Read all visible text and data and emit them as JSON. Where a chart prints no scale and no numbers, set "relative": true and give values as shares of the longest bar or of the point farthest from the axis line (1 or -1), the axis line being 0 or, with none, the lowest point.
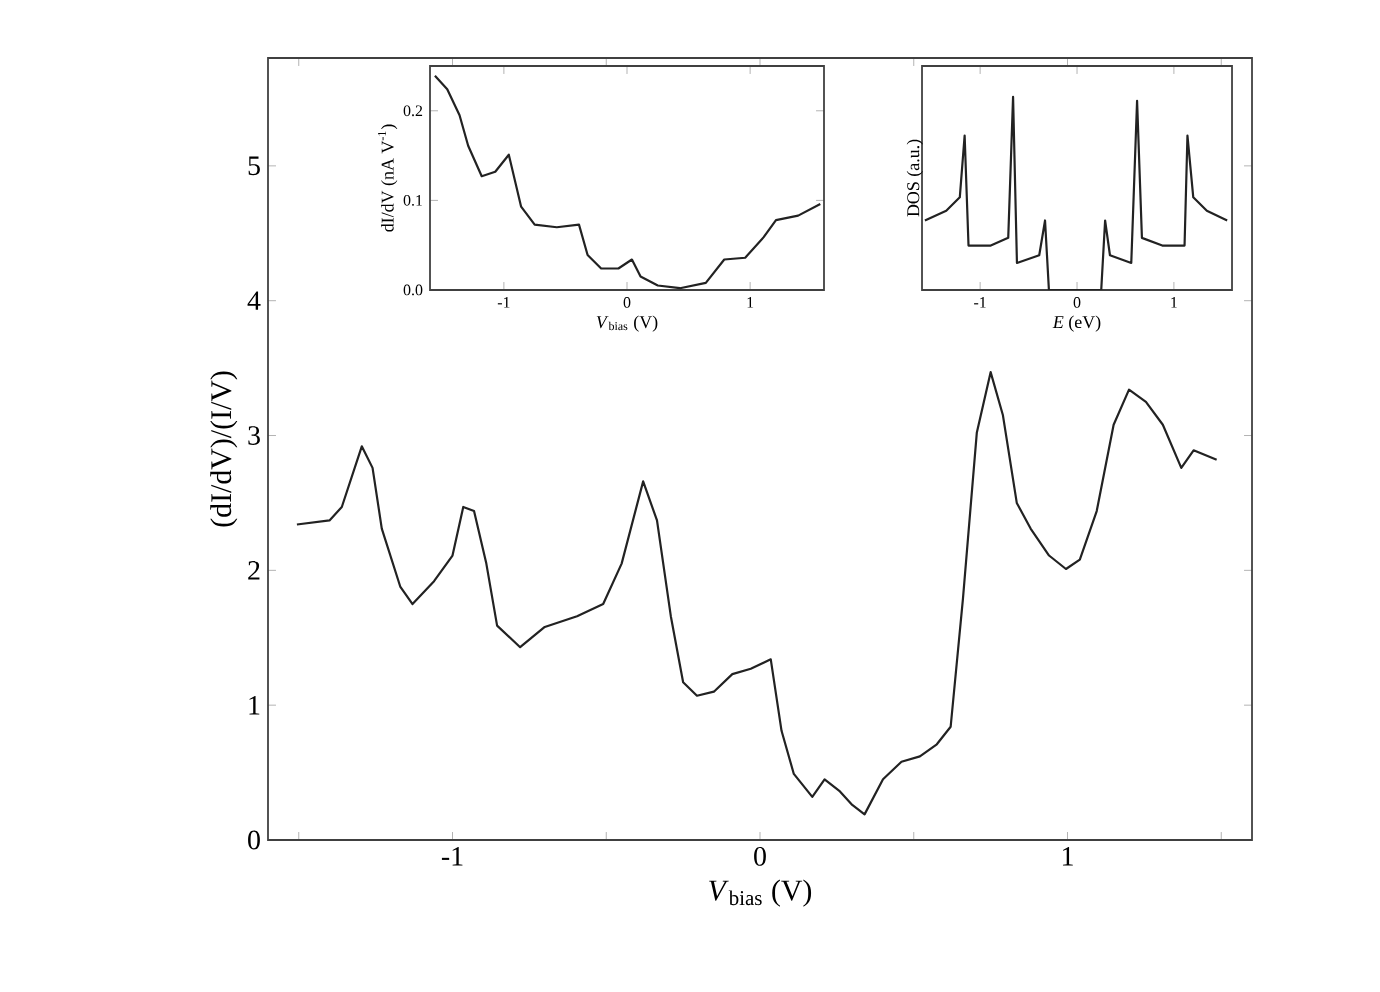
{
  "chart_data": [
    {
      "type": "line",
      "xlabel": "*V*$_{bias}$ (V)",
      "ylabel": "(dI/dV)/(I/V)",
      "xlim": [
        -1.6,
        1.6
      ],
      "ylim": [
        0,
        5.8
      ],
      "xticks": [
        {
          "value": -1.5,
          "label": null
        },
        -1,
        {
          "value": -0.5,
          "label": null
        },
        0,
        {
          "value": 0.5,
          "label": null
        },
        1,
        {
          "value": 1.5,
          "label": null
        }
      ],
      "yticks": [
        0,
        1,
        2,
        3,
        4,
        5
      ],
      "x": [
        -1.506,
        -1.4,
        -1.36,
        -1.295,
        -1.26,
        -1.23,
        -1.17,
        -1.13,
        -1.06,
        -1.0,
        -0.965,
        -0.93,
        -0.89,
        -0.855,
        -0.78,
        -0.7,
        -0.595,
        -0.51,
        -0.45,
        -0.38,
        -0.335,
        -0.29,
        -0.25,
        -0.205,
        -0.15,
        -0.09,
        -0.03,
        0.035,
        0.07,
        0.11,
        0.17,
        0.21,
        0.26,
        0.3,
        0.34,
        0.4,
        0.46,
        0.52,
        0.575,
        0.62,
        0.66,
        0.705,
        0.75,
        0.79,
        0.835,
        0.88,
        0.94,
        0.995,
        1.04,
        1.095,
        1.15,
        1.2,
        1.255,
        1.31,
        1.37,
        1.41,
        1.485
      ],
      "series": [
        {
          "color": "#222222",
          "values": [
            2.34,
            2.37,
            2.47,
            2.92,
            2.76,
            2.31,
            1.88,
            1.75,
            1.92,
            2.11,
            2.47,
            2.44,
            2.05,
            1.59,
            1.43,
            1.58,
            1.66,
            1.75,
            2.05,
            2.66,
            2.37,
            1.66,
            1.17,
            1.07,
            1.1,
            1.23,
            1.27,
            1.34,
            0.81,
            0.49,
            0.32,
            0.45,
            0.36,
            0.26,
            0.19,
            0.45,
            0.58,
            0.62,
            0.71,
            0.84,
            1.79,
            3.02,
            3.47,
            3.15,
            2.5,
            2.31,
            2.11,
            2.01,
            2.08,
            2.44,
            3.08,
            3.34,
            3.25,
            3.08,
            2.76,
            2.89,
            2.82
          ]
        }
      ]
    },
    {
      "type": "line",
      "xlabel": "*V*$_{bias}$ (V)",
      "ylabel": "dI/dV (nA V$^{-1}$)",
      "xlim": [
        -1.6,
        1.6
      ],
      "ylim": [
        0,
        0.25
      ],
      "xticks": [
        -1,
        0,
        1
      ],
      "yticks": [
        {
          "value": 0,
          "label": "0.0"
        },
        {
          "value": 0.1,
          "label": "0.1"
        },
        {
          "value": 0.2,
          "label": "0.2"
        }
      ],
      "x": [
        -1.56,
        -1.46,
        -1.36,
        -1.29,
        -1.18,
        -1.07,
        -0.96,
        -0.86,
        -0.75,
        -0.57,
        -0.39,
        -0.32,
        -0.21,
        -0.07,
        0.04,
        0.11,
        0.25,
        0.43,
        0.64,
        0.79,
        0.96,
        1.11,
        1.21,
        1.39,
        1.57
      ],
      "series": [
        {
          "color": "#222222",
          "values": [
            0.239,
            0.224,
            0.195,
            0.161,
            0.127,
            0.132,
            0.151,
            0.093,
            0.073,
            0.07,
            0.073,
            0.039,
            0.024,
            0.024,
            0.034,
            0.015,
            0.005,
            0.002,
            0.008,
            0.034,
            0.036,
            0.059,
            0.078,
            0.083,
            0.096
          ]
        }
      ]
    },
    {
      "type": "line",
      "xlabel": "*E* (eV)",
      "ylabel": "DOS (a.u.)",
      "xlim": [
        -1.6,
        1.6
      ],
      "xticks": [
        -1,
        0,
        1
      ],
      "relative": true,
      "x": [
        -1.57,
        -1.35,
        -1.21,
        -1.16,
        -1.12,
        -0.89,
        -0.71,
        -0.66,
        -0.62,
        -0.39,
        -0.33,
        -0.29,
        0.25,
        0.29,
        0.34,
        0.56,
        0.62,
        0.67,
        0.88,
        1.11,
        1.14,
        1.2,
        1.34,
        1.55
      ],
      "series": [
        {
          "color": "#222222",
          "values": [
            0.36,
            0.41,
            0.48,
            0.8,
            0.23,
            0.23,
            0.27,
            1.0,
            0.14,
            0.18,
            0.36,
            0,
            0,
            0.36,
            0.18,
            0.14,
            0.98,
            0.27,
            0.23,
            0.23,
            0.8,
            0.48,
            0.41,
            0.36
          ]
        }
      ]
    }
  ]
}
